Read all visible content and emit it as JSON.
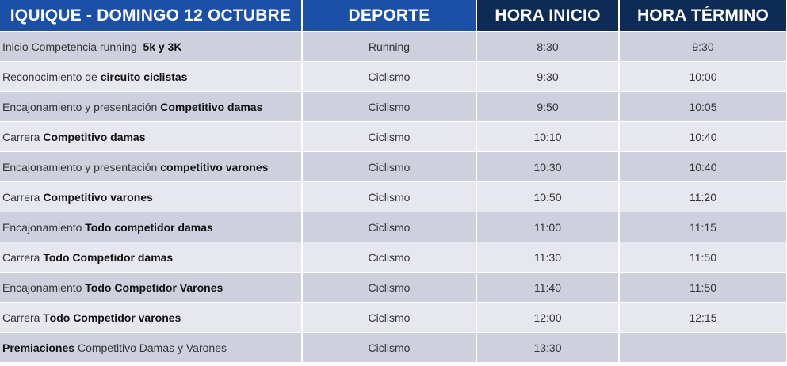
{
  "headers": [
    "IQUIQUE - DOMINGO 12 OCTUBRE",
    "DEPORTE",
    "HORA INICIO",
    "HORA TÉRMINO"
  ],
  "colors": {
    "header_blue": "#1c4fa6",
    "header_navy": "#0e2b57",
    "row_odd": "#cfd0de",
    "row_even": "#e6e7ef"
  },
  "rows": [
    {
      "activity": [
        {
          "t": "Inicio Competencia running  ",
          "b": false
        },
        {
          "t": "5k y 3K",
          "b": true
        }
      ],
      "sport": "Running",
      "start": "8:30",
      "end": "9:30"
    },
    {
      "activity": [
        {
          "t": "Reconocimiento de ",
          "b": false
        },
        {
          "t": "circuito ciclistas",
          "b": true
        }
      ],
      "sport": "Ciclismo",
      "start": "9:30",
      "end": "10:00"
    },
    {
      "activity": [
        {
          "t": "Encajonamiento y presentación ",
          "b": false
        },
        {
          "t": "Competitivo damas",
          "b": true
        }
      ],
      "sport": "Ciclismo",
      "start": "9:50",
      "end": "10:05"
    },
    {
      "activity": [
        {
          "t": "Carrera ",
          "b": false
        },
        {
          "t": "Competitivo damas",
          "b": true
        }
      ],
      "sport": "Ciclismo",
      "start": "10:10",
      "end": "10:40"
    },
    {
      "activity": [
        {
          "t": "Encajonamiento y presentación ",
          "b": false
        },
        {
          "t": "competitivo varones",
          "b": true
        }
      ],
      "sport": "Ciclismo",
      "start": "10:30",
      "end": "10:40"
    },
    {
      "activity": [
        {
          "t": "Carrera ",
          "b": false
        },
        {
          "t": "Competitivo varones",
          "b": true
        }
      ],
      "sport": "Ciclismo",
      "start": "10:50",
      "end": "11:20"
    },
    {
      "activity": [
        {
          "t": "Encajonamiento ",
          "b": false
        },
        {
          "t": "Todo competidor damas",
          "b": true
        }
      ],
      "sport": "Ciclismo",
      "start": "11:00",
      "end": "11:15"
    },
    {
      "activity": [
        {
          "t": "Carrera ",
          "b": false
        },
        {
          "t": "Todo Competidor damas",
          "b": true
        }
      ],
      "sport": "Ciclismo",
      "start": "11:30",
      "end": "11:50"
    },
    {
      "activity": [
        {
          "t": "Encajonamiento ",
          "b": false
        },
        {
          "t": "Todo Competidor Varones",
          "b": true
        }
      ],
      "sport": "Ciclismo",
      "start": "11:40",
      "end": "11:50"
    },
    {
      "activity": [
        {
          "t": "Carrera T",
          "b": false
        },
        {
          "t": "odo Competidor varones",
          "b": true
        }
      ],
      "sport": "Ciclismo",
      "start": "12:00",
      "end": "12:15"
    },
    {
      "activity": [
        {
          "t": "Premiaciones",
          "b": true
        },
        {
          "t": " Competitivo Damas y Varones",
          "b": false
        }
      ],
      "sport": "Ciclismo",
      "start": "13:30",
      "end": ""
    }
  ]
}
